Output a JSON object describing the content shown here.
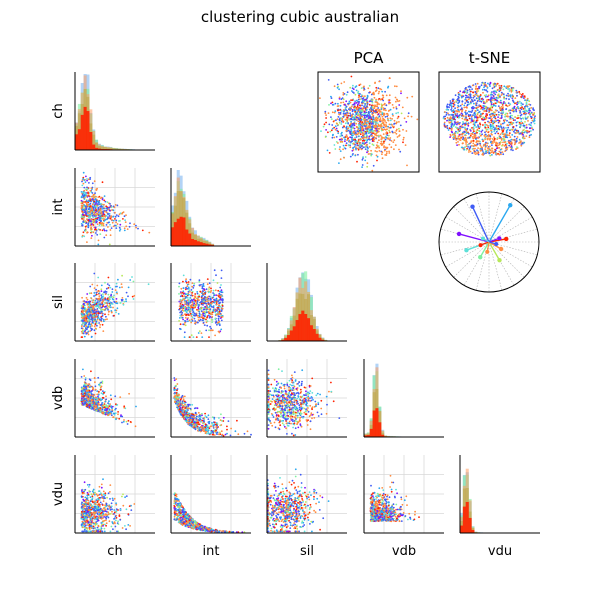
{
  "title": "clustering cubic australian",
  "chart_data": {
    "type": "scatter",
    "title": "clustering cubic australian",
    "variables": [
      "ch",
      "int",
      "sil",
      "vdb",
      "vdu"
    ],
    "panels": {
      "pca_title": "PCA",
      "tsne_title": "t-SNE"
    },
    "colors": [
      "#ff2200",
      "#ff8c40",
      "#b7e85a",
      "#7ff0a0",
      "#5de0d8",
      "#2aa8f0",
      "#3f5cf5",
      "#8010ff"
    ],
    "radial": {
      "angles_deg": [
        10,
        60,
        115,
        165,
        200,
        240,
        300,
        330
      ],
      "lengths": [
        0.35,
        0.85,
        0.78,
        0.62,
        0.48,
        0.35,
        0.42,
        0.28
      ]
    },
    "grid": true,
    "legend": "none"
  }
}
